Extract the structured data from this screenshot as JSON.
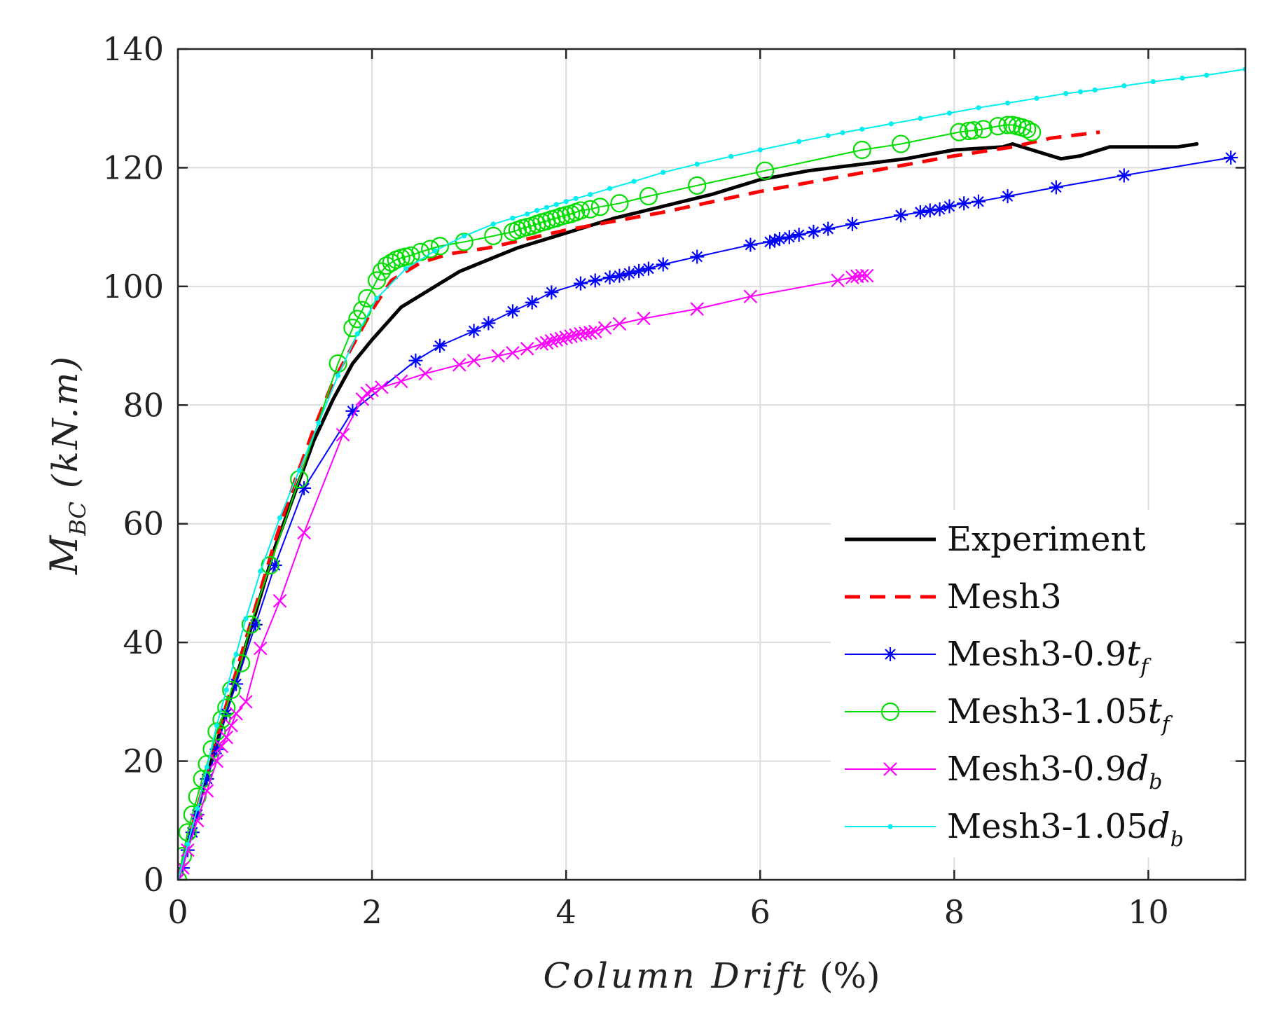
{
  "chart_data": {
    "type": "line",
    "title": "",
    "xlabel": "Column Drift (%)",
    "ylabel": "M_BC (kN.m)",
    "xlabel_parts": {
      "italic": "Column Drift",
      "plain": " (%)"
    },
    "ylabel_parts": {
      "main": "M",
      "sub": "BC",
      "rest": " (kN.m)"
    },
    "xlim": [
      0,
      11
    ],
    "ylim": [
      0,
      140
    ],
    "xticks": [
      0,
      2,
      4,
      6,
      8,
      10
    ],
    "yticks": [
      0,
      20,
      40,
      60,
      80,
      100,
      120,
      140
    ],
    "xtick_labels": [
      "0",
      "2",
      "4",
      "6",
      "8",
      "10"
    ],
    "ytick_labels": [
      "0",
      "20",
      "40",
      "60",
      "80",
      "100",
      "120",
      "140"
    ],
    "grid": true,
    "legend_position": "bottom-right",
    "series": [
      {
        "name": "Experiment",
        "legend_main": "Experiment",
        "legend_sub": "",
        "legend_var": "",
        "color": "#000000",
        "dash": "",
        "marker": "none",
        "width": 5,
        "x": [
          0,
          0.2,
          0.4,
          0.6,
          0.8,
          1.0,
          1.2,
          1.4,
          1.6,
          1.8,
          2.0,
          2.3,
          2.6,
          2.9,
          3.2,
          3.5,
          4.0,
          4.5,
          5.0,
          5.5,
          6.0,
          6.5,
          7.0,
          7.5,
          8.0,
          8.5,
          8.6,
          8.8,
          9.0,
          9.1,
          9.3,
          9.6,
          10.0,
          10.3,
          10.5
        ],
        "y": [
          0,
          12,
          23,
          34,
          45,
          56,
          65,
          74,
          81,
          87,
          91,
          96.5,
          99.5,
          102.5,
          104.5,
          106.5,
          109,
          111.5,
          113.5,
          115.5,
          118,
          119.5,
          120.5,
          121.5,
          123,
          123.5,
          124,
          123,
          122,
          121.5,
          122,
          123.5,
          123.5,
          123.5,
          124
        ]
      },
      {
        "name": "Mesh3",
        "legend_main": "Mesh3",
        "legend_sub": "",
        "legend_var": "",
        "color": "#ff0000",
        "dash": "22,14",
        "marker": "none",
        "width": 5,
        "x": [
          0,
          0.2,
          0.4,
          0.6,
          0.8,
          1.0,
          1.2,
          1.4,
          1.6,
          1.8,
          2.0,
          2.2,
          2.5,
          2.8,
          3.2,
          3.6,
          4.0,
          5.0,
          6.0,
          7.0,
          8.0,
          8.6,
          9.0,
          9.5
        ],
        "y": [
          0,
          12,
          24,
          35,
          46,
          57,
          67,
          76,
          84,
          90,
          96,
          101,
          104,
          105.5,
          106.5,
          108,
          109.5,
          112.5,
          116,
          119,
          122,
          123.5,
          125,
          126
        ]
      },
      {
        "name": "Mesh3-0.9tf",
        "legend_main": "Mesh3-0.9",
        "legend_sub": "f",
        "legend_var": "t",
        "color": "#0000ff",
        "dash": "",
        "marker": "star",
        "width": 2,
        "x": [
          0,
          0.05,
          0.1,
          0.15,
          0.2,
          0.3,
          0.4,
          0.5,
          0.6,
          0.8,
          1.0,
          1.3,
          1.8,
          2.45,
          2.7,
          3.05,
          3.2,
          3.45,
          3.65,
          3.85,
          4.15,
          4.3,
          4.45,
          4.55,
          4.65,
          4.75,
          4.85,
          5.0,
          5.35,
          5.9,
          6.1,
          6.15,
          6.2,
          6.3,
          6.4,
          6.55,
          6.7,
          6.95,
          7.45,
          7.65,
          7.75,
          7.85,
          7.95,
          8.1,
          8.25,
          8.55,
          9.05,
          9.75,
          10.85
        ],
        "y": [
          0,
          2,
          5,
          8,
          11,
          17,
          22,
          28,
          33,
          43,
          53,
          66,
          79,
          87.5,
          90,
          92.5,
          93.8,
          95.8,
          97.3,
          99,
          100.5,
          101,
          101.5,
          101.8,
          102.2,
          102.6,
          103,
          103.7,
          105,
          107,
          107.5,
          107.7,
          108,
          108.3,
          108.7,
          109.2,
          109.7,
          110.5,
          112,
          112.5,
          112.8,
          113,
          113.5,
          114,
          114.3,
          115.2,
          116.7,
          118.7,
          121.7
        ]
      },
      {
        "name": "Mesh3-1.05tf",
        "legend_main": "Mesh3-1.05",
        "legend_sub": "f",
        "legend_var": "t",
        "color": "#00dd00",
        "dash": "",
        "marker": "circle",
        "width": 2,
        "x": [
          0,
          0.05,
          0.1,
          0.15,
          0.2,
          0.25,
          0.3,
          0.35,
          0.4,
          0.45,
          0.5,
          0.55,
          0.65,
          0.75,
          0.95,
          1.25,
          1.65,
          1.8,
          1.85,
          1.9,
          1.95,
          2.05,
          2.1,
          2.15,
          2.2,
          2.25,
          2.3,
          2.35,
          2.4,
          2.5,
          2.6,
          2.7,
          2.95,
          3.25,
          3.45,
          3.5,
          3.55,
          3.6,
          3.65,
          3.7,
          3.75,
          3.8,
          3.85,
          3.9,
          3.95,
          4.0,
          4.05,
          4.1,
          4.15,
          4.25,
          4.35,
          4.55,
          4.85,
          5.35,
          6.05,
          7.05,
          7.45,
          8.05,
          8.15,
          8.2,
          8.3,
          8.45,
          8.55,
          8.6,
          8.65,
          8.7,
          8.75,
          8.8
        ],
        "y": [
          0,
          4,
          8,
          11,
          14,
          17,
          19.5,
          22,
          25,
          27,
          29,
          32,
          36.5,
          43,
          53,
          67.5,
          87,
          93,
          94.5,
          96,
          98,
          101,
          102.5,
          103.5,
          104,
          104.5,
          104.8,
          105,
          105.2,
          105.8,
          106.3,
          106.8,
          107.5,
          108.5,
          109.2,
          109.5,
          109.8,
          110,
          110.2,
          110.5,
          110.8,
          111,
          111.3,
          111.5,
          111.8,
          112,
          112.2,
          112.5,
          112.8,
          113,
          113.4,
          114,
          115.2,
          117,
          119.5,
          123,
          124,
          126,
          126.2,
          126.3,
          126.5,
          127,
          127.2,
          127.2,
          127,
          126.8,
          126.5,
          126
        ]
      },
      {
        "name": "Mesh3-0.9db",
        "legend_main": "Mesh3-0.9",
        "legend_sub": "b",
        "legend_var": "d",
        "color": "#ff00ff",
        "dash": "",
        "marker": "x",
        "width": 2,
        "x": [
          0,
          0.05,
          0.1,
          0.2,
          0.3,
          0.4,
          0.45,
          0.5,
          0.55,
          0.6,
          0.7,
          0.85,
          1.05,
          1.3,
          1.7,
          1.9,
          1.95,
          2.0,
          2.1,
          2.3,
          2.55,
          2.9,
          3.05,
          3.3,
          3.45,
          3.6,
          3.75,
          3.8,
          3.85,
          3.9,
          3.95,
          4.0,
          4.05,
          4.1,
          4.15,
          4.2,
          4.25,
          4.3,
          4.4,
          4.55,
          4.8,
          5.35,
          5.9,
          6.8,
          6.95,
          7.0,
          7.05,
          7.1
        ],
        "y": [
          0,
          2,
          5,
          10,
          15,
          20,
          22.5,
          24,
          26,
          28,
          30,
          39,
          47,
          58.5,
          75,
          81,
          82,
          82.5,
          83,
          84,
          85.3,
          86.8,
          87.5,
          88.3,
          88.8,
          89.5,
          90.3,
          90.5,
          90.8,
          91,
          91.2,
          91.4,
          91.6,
          91.8,
          92,
          92.1,
          92.2,
          92.4,
          93,
          93.7,
          94.6,
          96.2,
          98.3,
          101,
          101.5,
          101.7,
          101.8,
          101.8
        ]
      },
      {
        "name": "Mesh3-1.05db",
        "legend_main": "Mesh3-1.05",
        "legend_sub": "b",
        "legend_var": "d",
        "color": "#00eeee",
        "dash": "",
        "marker": "dot",
        "width": 2,
        "x": [
          0,
          0.1,
          0.2,
          0.3,
          0.4,
          0.5,
          0.6,
          0.7,
          0.85,
          1.05,
          1.25,
          1.45,
          1.65,
          1.85,
          2.05,
          2.35,
          2.65,
          2.95,
          3.25,
          3.45,
          3.6,
          3.7,
          3.8,
          3.9,
          4.0,
          4.1,
          4.25,
          4.45,
          4.7,
          5.0,
          5.35,
          5.7,
          6.0,
          6.4,
          6.7,
          6.85,
          7.05,
          7.35,
          7.65,
          7.95,
          8.25,
          8.55,
          8.85,
          9.15,
          9.3,
          9.45,
          9.75,
          10.05,
          10.35,
          10.6,
          11.0
        ],
        "y": [
          0,
          6,
          12,
          19,
          26,
          32,
          38,
          44,
          52,
          61,
          69,
          77,
          85,
          92,
          98,
          103,
          106,
          108.5,
          110.5,
          111.5,
          112.2,
          112.8,
          113.3,
          113.8,
          114.3,
          114.8,
          115.5,
          116.5,
          117.7,
          119.2,
          120.6,
          121.9,
          123,
          124.4,
          125.4,
          125.9,
          126.5,
          127.4,
          128.3,
          129.2,
          130.1,
          130.9,
          131.7,
          132.5,
          132.8,
          133.1,
          133.8,
          134.5,
          135.1,
          135.6,
          136.6
        ]
      }
    ]
  }
}
